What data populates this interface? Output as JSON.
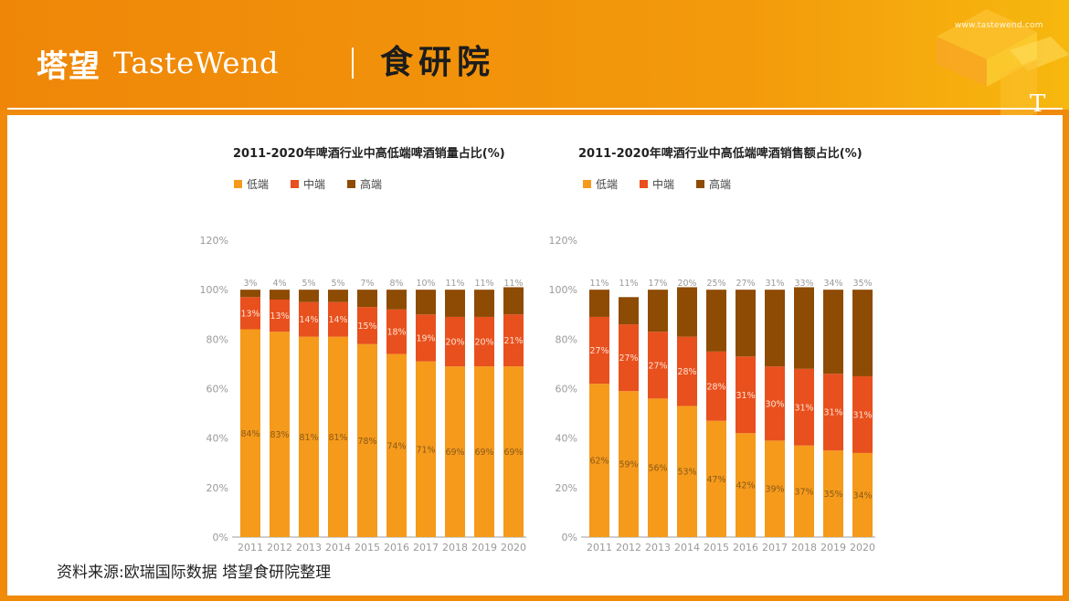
{
  "header": {
    "logo_cn": "塔望",
    "logo_en": "TasteWend",
    "institute": "食研院",
    "site_url": "www.tastewend.com",
    "deco_letter": "T"
  },
  "footer": {
    "source": "资料来源:欧瑞国际数据 塔望食研院整理"
  },
  "colors": {
    "low": "#f59a1b",
    "mid": "#e8501e",
    "high": "#8e4b04",
    "accent": "#f08a0b"
  },
  "chart_data": [
    {
      "type": "bar",
      "stacked": true,
      "title": "2011-2020年啤酒行业中高低端啤酒销量占比(%)",
      "categories": [
        "2011",
        "2012",
        "2013",
        "2014",
        "2015",
        "2016",
        "2017",
        "2018",
        "2019",
        "2020"
      ],
      "series": [
        {
          "name": "低端",
          "values": [
            84,
            83,
            81,
            81,
            78,
            74,
            71,
            69,
            69,
            69
          ]
        },
        {
          "name": "中端",
          "values": [
            13,
            13,
            14,
            14,
            15,
            18,
            19,
            20,
            20,
            21
          ]
        },
        {
          "name": "高端",
          "values": [
            3,
            4,
            5,
            5,
            7,
            8,
            10,
            11,
            11,
            11
          ]
        }
      ],
      "ylim": [
        0,
        120
      ],
      "yticks": [
        "0%",
        "20%",
        "40%",
        "60%",
        "80%",
        "100%",
        "120%"
      ],
      "legend": "top-left",
      "grid": false
    },
    {
      "type": "bar",
      "stacked": true,
      "title": "2011-2020年啤酒行业中高低端啤酒销售额占比(%)",
      "categories": [
        "2011",
        "2012",
        "2013",
        "2014",
        "2015",
        "2016",
        "2017",
        "2018",
        "2019",
        "2020"
      ],
      "series": [
        {
          "name": "低端",
          "values": [
            62,
            59,
            56,
            53,
            47,
            42,
            39,
            37,
            35,
            34
          ]
        },
        {
          "name": "中端",
          "values": [
            27,
            27,
            27,
            28,
            28,
            31,
            30,
            31,
            31,
            31
          ]
        },
        {
          "name": "高端",
          "values": [
            11,
            11,
            17,
            20,
            25,
            27,
            31,
            33,
            34,
            35
          ]
        }
      ],
      "ylim": [
        0,
        120
      ],
      "yticks": [
        "0%",
        "20%",
        "40%",
        "60%",
        "80%",
        "100%",
        "120%"
      ],
      "legend": "top-left",
      "grid": false
    }
  ]
}
